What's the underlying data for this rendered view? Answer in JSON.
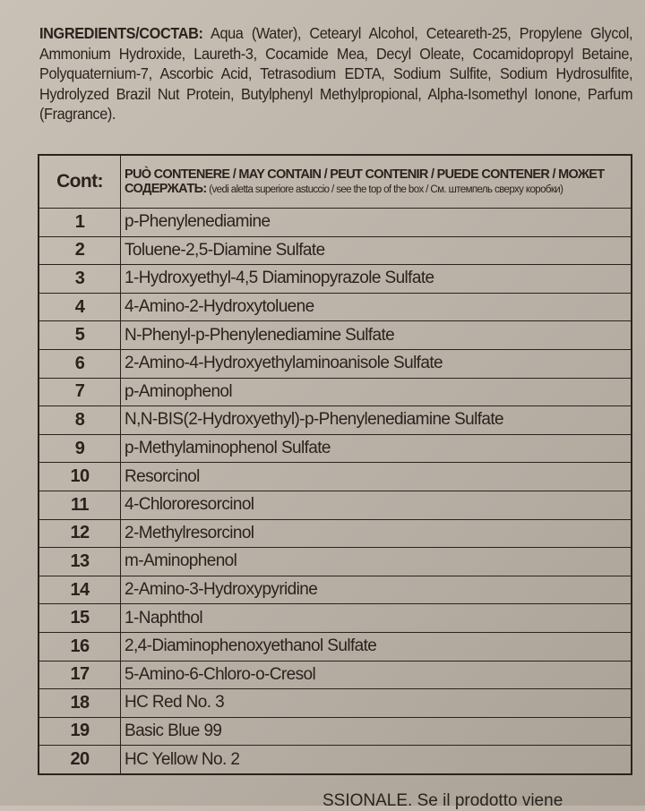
{
  "ingredients": {
    "label": "INGREDIENTS/COCTAB:",
    "text": "Aqua (Water), Cetearyl Alcohol, Ceteareth-25, Propylene Glycol, Ammonium Hydroxide, Laureth-3, Cocamide Mea, Decyl Oleate, Cocamidopropyl Betaine, Polyquaternium-7, Ascorbic Acid, Tetrasodium EDTA, Sodium Sulfite, Sodium Hydrosulfite, Hydrolyzed Brazil Nut Protein, Butylphenyl Methylpropional, Alpha-Isomethyl Ionone, Parfum (Fragrance)."
  },
  "table": {
    "header_cont": "Cont:",
    "header_line1": "PUÒ CONTENERE / MAY CONTAIN / PEUT CONTENIR / PUEDE CONTENER / МОЖЕТ",
    "header_line2_bold": "СОДЕРЖАТЬ:",
    "header_line2": "(vedi aletta superiore astuccio / see the top of the box / См. штемпель сверху коробки)",
    "rows": [
      {
        "n": "1",
        "name": "p-Phenylenediamine"
      },
      {
        "n": "2",
        "name": "Toluene-2,5-Diamine Sulfate"
      },
      {
        "n": "3",
        "name": "1-Hydroxyethyl-4,5 Diaminopyrazole Sulfate"
      },
      {
        "n": "4",
        "name": "4-Amino-2-Hydroxytoluene"
      },
      {
        "n": "5",
        "name": "N-Phenyl-p-Phenylenediamine Sulfate"
      },
      {
        "n": "6",
        "name": "2-Amino-4-Hydroxyethylaminoanisole Sulfate"
      },
      {
        "n": "7",
        "name": "p-Aminophenol"
      },
      {
        "n": "8",
        "name": "N,N-BIS(2-Hydroxyethyl)-p-Phenylenediamine Sulfate"
      },
      {
        "n": "9",
        "name": "p-Methylaminophenol Sulfate"
      },
      {
        "n": "10",
        "name": "Resorcinol"
      },
      {
        "n": "11",
        "name": "4-Chlororesorcinol"
      },
      {
        "n": "12",
        "name": "2-Methylresorcinol"
      },
      {
        "n": "13",
        "name": "m-Aminophenol"
      },
      {
        "n": "14",
        "name": "2-Amino-3-Hydroxypyridine"
      },
      {
        "n": "15",
        "name": "1-Naphthol"
      },
      {
        "n": "16",
        "name": "2,4-Diaminophenoxyethanol Sulfate"
      },
      {
        "n": "17",
        "name": "5-Amino-6-Chloro-o-Cresol"
      },
      {
        "n": "18",
        "name": "HC Red No. 3"
      },
      {
        "n": "19",
        "name": "Basic Blue 99"
      },
      {
        "n": "20",
        "name": "HC Yellow No. 2"
      }
    ]
  },
  "footer_partial": "SSIONALE. Se il prodotto viene"
}
